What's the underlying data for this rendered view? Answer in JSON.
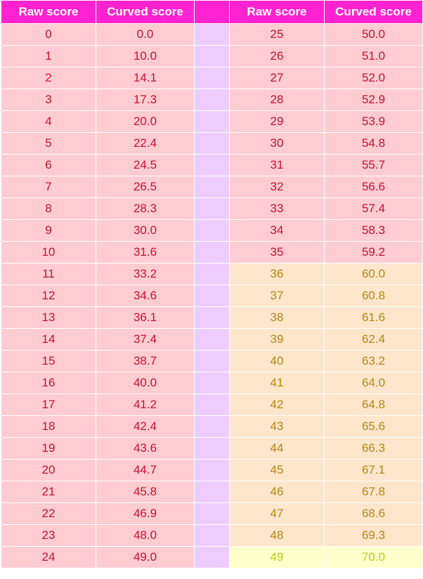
{
  "headers": {
    "raw": "Raw score",
    "curved": "Curved score"
  },
  "colors": {
    "header_bg": "#ff22d0",
    "low_band_bg": "#ffccd2",
    "low_band_text": "#c8102e",
    "mid_band_bg": "#fde6cc",
    "mid_band_text": "#b8860b",
    "top_band_bg": "#ffffcc",
    "top_band_text": "#b5d10f",
    "divider_bg": "#eeccff"
  },
  "rows": [
    {
      "raw": "0",
      "curved": "0.0",
      "band": "low"
    },
    {
      "raw": "1",
      "curved": "10.0",
      "band": "low"
    },
    {
      "raw": "2",
      "curved": "14.1",
      "band": "low"
    },
    {
      "raw": "3",
      "curved": "17.3",
      "band": "low"
    },
    {
      "raw": "4",
      "curved": "20.0",
      "band": "low"
    },
    {
      "raw": "5",
      "curved": "22.4",
      "band": "low"
    },
    {
      "raw": "6",
      "curved": "24.5",
      "band": "low"
    },
    {
      "raw": "7",
      "curved": "26.5",
      "band": "low"
    },
    {
      "raw": "8",
      "curved": "28.3",
      "band": "low"
    },
    {
      "raw": "9",
      "curved": "30.0",
      "band": "low"
    },
    {
      "raw": "10",
      "curved": "31.6",
      "band": "low"
    },
    {
      "raw": "11",
      "curved": "33.2",
      "band": "low"
    },
    {
      "raw": "12",
      "curved": "34.6",
      "band": "low"
    },
    {
      "raw": "13",
      "curved": "36.1",
      "band": "low"
    },
    {
      "raw": "14",
      "curved": "37.4",
      "band": "low"
    },
    {
      "raw": "15",
      "curved": "38.7",
      "band": "low"
    },
    {
      "raw": "16",
      "curved": "40.0",
      "band": "low"
    },
    {
      "raw": "17",
      "curved": "41.2",
      "band": "low"
    },
    {
      "raw": "18",
      "curved": "42.4",
      "band": "low"
    },
    {
      "raw": "19",
      "curved": "43.6",
      "band": "low"
    },
    {
      "raw": "20",
      "curved": "44.7",
      "band": "low"
    },
    {
      "raw": "21",
      "curved": "45.8",
      "band": "low"
    },
    {
      "raw": "22",
      "curved": "46.9",
      "band": "low"
    },
    {
      "raw": "23",
      "curved": "48.0",
      "band": "low"
    },
    {
      "raw": "24",
      "curved": "49.0",
      "band": "low"
    },
    {
      "raw": "25",
      "curved": "50.0",
      "band": "low"
    },
    {
      "raw": "26",
      "curved": "51.0",
      "band": "low"
    },
    {
      "raw": "27",
      "curved": "52.0",
      "band": "low"
    },
    {
      "raw": "28",
      "curved": "52.9",
      "band": "low"
    },
    {
      "raw": "29",
      "curved": "53.9",
      "band": "low"
    },
    {
      "raw": "30",
      "curved": "54.8",
      "band": "low"
    },
    {
      "raw": "31",
      "curved": "55.7",
      "band": "low"
    },
    {
      "raw": "32",
      "curved": "56.6",
      "band": "low"
    },
    {
      "raw": "33",
      "curved": "57.4",
      "band": "low"
    },
    {
      "raw": "34",
      "curved": "58.3",
      "band": "low"
    },
    {
      "raw": "35",
      "curved": "59.2",
      "band": "low"
    },
    {
      "raw": "36",
      "curved": "60.0",
      "band": "mid"
    },
    {
      "raw": "37",
      "curved": "60.8",
      "band": "mid"
    },
    {
      "raw": "38",
      "curved": "61.6",
      "band": "mid"
    },
    {
      "raw": "39",
      "curved": "62.4",
      "band": "mid"
    },
    {
      "raw": "40",
      "curved": "63.2",
      "band": "mid"
    },
    {
      "raw": "41",
      "curved": "64.0",
      "band": "mid"
    },
    {
      "raw": "42",
      "curved": "64.8",
      "band": "mid"
    },
    {
      "raw": "43",
      "curved": "65.6",
      "band": "mid"
    },
    {
      "raw": "44",
      "curved": "66.3",
      "band": "mid"
    },
    {
      "raw": "45",
      "curved": "67.1",
      "band": "mid"
    },
    {
      "raw": "46",
      "curved": "67.8",
      "band": "mid"
    },
    {
      "raw": "47",
      "curved": "68.6",
      "band": "mid"
    },
    {
      "raw": "48",
      "curved": "69.3",
      "band": "mid"
    },
    {
      "raw": "49",
      "curved": "70.0",
      "band": "top"
    }
  ]
}
